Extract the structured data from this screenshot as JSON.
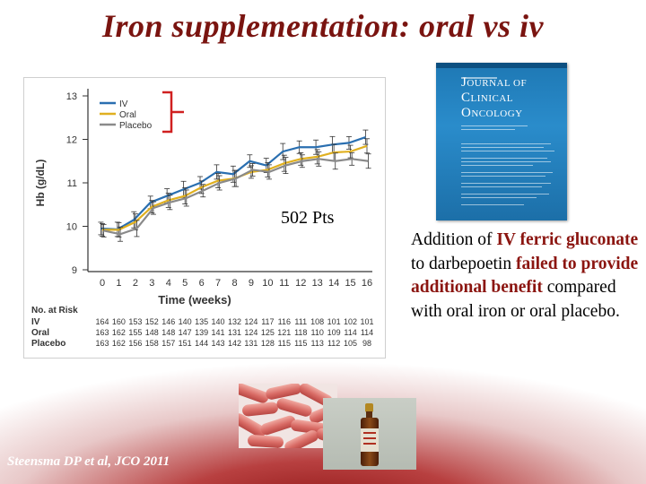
{
  "title": "Iron supplementation: oral vs iv",
  "chart_data": {
    "type": "line",
    "x": [
      0,
      1,
      2,
      3,
      4,
      5,
      6,
      7,
      8,
      9,
      10,
      11,
      12,
      13,
      14,
      15,
      16
    ],
    "xlabel": "Time (weeks)",
    "ylabel": "Hb (g/dL)",
    "ylim": [
      9,
      13
    ],
    "yticks": [
      9,
      10,
      11,
      12,
      13
    ],
    "legend_placement": "top-left",
    "grid": false,
    "series": [
      {
        "name": "IV",
        "color": "#2a6fb0",
        "values": [
          9.95,
          9.93,
          10.15,
          10.55,
          10.7,
          10.85,
          11.0,
          11.25,
          11.2,
          11.5,
          11.4,
          11.72,
          11.82,
          11.82,
          11.88,
          11.92,
          12.05
        ]
      },
      {
        "name": "Oral",
        "color": "#e0b020",
        "values": [
          9.92,
          9.92,
          10.1,
          10.45,
          10.6,
          10.7,
          10.9,
          11.05,
          11.1,
          11.25,
          11.3,
          11.45,
          11.55,
          11.6,
          11.7,
          11.72,
          11.85
        ]
      },
      {
        "name": "Placebo",
        "color": "#8a8a8a",
        "values": [
          9.9,
          9.82,
          9.95,
          10.42,
          10.55,
          10.65,
          10.82,
          11.0,
          11.1,
          11.3,
          11.25,
          11.4,
          11.5,
          11.55,
          11.5,
          11.55,
          11.5
        ]
      }
    ],
    "risk_table": {
      "header": "No. at Risk",
      "rows": [
        {
          "label": "IV",
          "values": [
            "164",
            "160",
            "153",
            "152",
            "146",
            "140",
            "135",
            "140",
            "132",
            "124",
            "117",
            "116",
            "111",
            "108",
            "101",
            "102",
            "101"
          ]
        },
        {
          "label": "Oral",
          "values": [
            "163",
            "162",
            "155",
            "148",
            "148",
            "147",
            "139",
            "141",
            "131",
            "124",
            "125",
            "121",
            "118",
            "110",
            "109",
            "114",
            "114"
          ]
        },
        {
          "label": "Placebo",
          "values": [
            "163",
            "162",
            "156",
            "158",
            "157",
            "151",
            "144",
            "143",
            "142",
            "131",
            "128",
            "115",
            "115",
            "113",
            "112",
            "105",
            "98"
          ]
        }
      ]
    },
    "annotation": "502 Pts"
  },
  "journal": {
    "line1_cap": "J",
    "line1_rest": "OURNAL",
    "line1_suffix": "OF",
    "line2_cap": "C",
    "line2_rest": "LINICAL",
    "line3_cap": "O",
    "line3_rest": "NCOLOGY"
  },
  "body": {
    "t1": "Addition of ",
    "h1": "IV ferric gluconate",
    "t2": " to darbepoetin ",
    "h2": "failed to provide additional  benefit",
    "t3": " compared with oral iron or oral placebo."
  },
  "citation": "Steensma DP et al, JCO 2011",
  "colors": {
    "title": "#7a1410",
    "highlight": "#8b1510",
    "bracket": "#d02020"
  }
}
